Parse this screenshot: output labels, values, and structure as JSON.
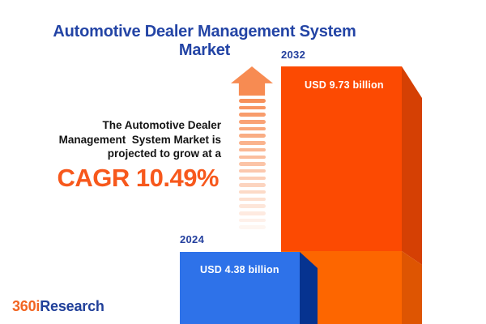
{
  "title": "Automotive Dealer Management System Market",
  "annotation": {
    "text": "The Automotive Dealer\nManagement  System Market is\nprojected to grow at a",
    "cagr": "CAGR 10.49%"
  },
  "bars": {
    "b2024": {
      "year": "2024",
      "label": "USD 4.38 billion"
    },
    "b2032": {
      "year": "2032",
      "label": "USD 9.73 billion"
    }
  },
  "arrow": {
    "segments": 19
  },
  "logo": {
    "part1": "360i",
    "part2": "Research"
  },
  "chart_data": {
    "type": "bar",
    "title": "Automotive Dealer Management System Market",
    "categories": [
      "2024",
      "2032"
    ],
    "values": [
      4.38,
      9.73
    ],
    "unit": "USD billion",
    "value_labels": [
      "USD 4.38 billion",
      "USD 9.73 billion"
    ],
    "cagr_percent": 10.49,
    "annotation": "The Automotive Dealer Management System Market is projected to grow at a CAGR 10.49%",
    "axes": "none",
    "grid": false,
    "legend": "none",
    "style": "3d-infographic-bars"
  },
  "colors": {
    "title-blue": "#2344A5",
    "year-blue": "#24409E",
    "cagr-orange": "#F7581C",
    "text-dark": "#141414",
    "bar-blue-front": "#2E72E9",
    "bar-blue-side": "#063390",
    "bar-orange-front-top": "#FC4A02",
    "bar-orange-front-bottom": "#FD6600",
    "bar-orange-side-top": "#D54004",
    "bar-orange-side-bottom": "#DE5502",
    "arrow-orange": "#F78B52",
    "logo-orange": "#F26522",
    "logo-blue": "#21409A",
    "value-text": "#FFFFFF"
  }
}
